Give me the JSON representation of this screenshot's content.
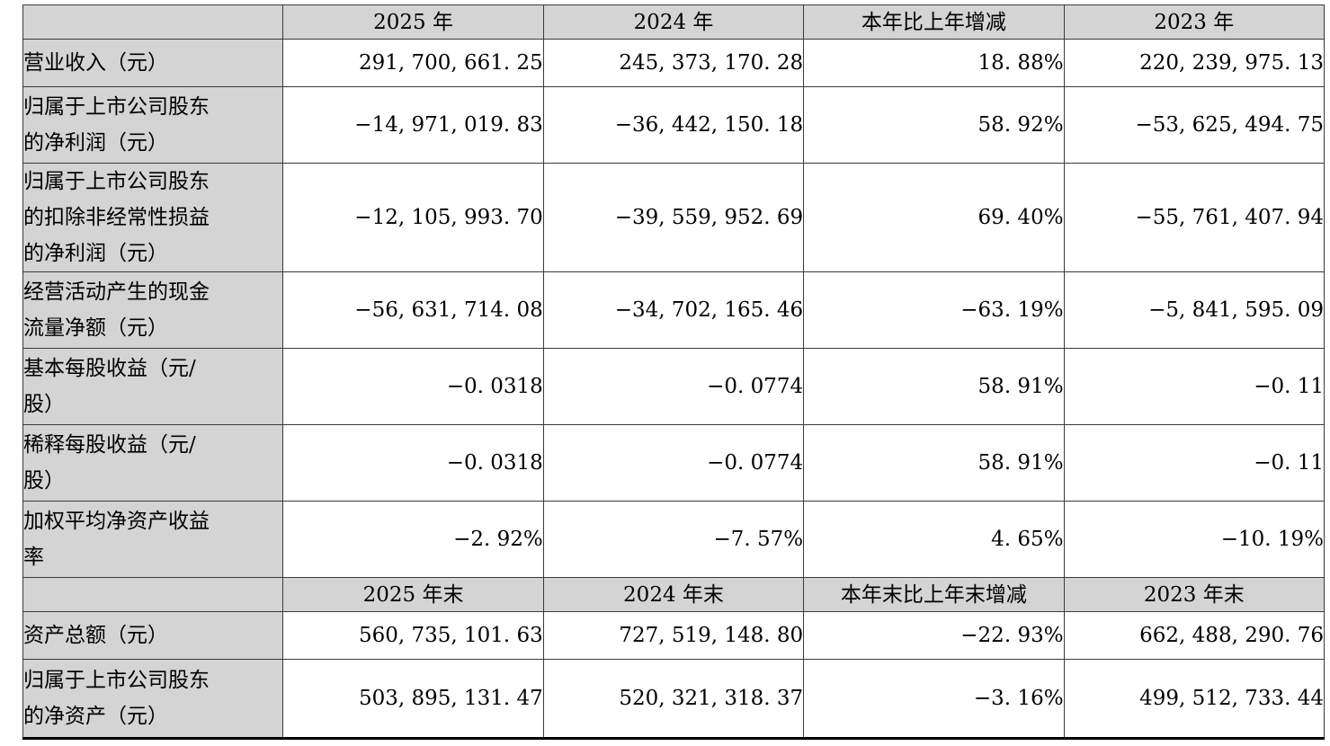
{
  "table_colors": {
    "header_and_label_fill": "#d4d4d4",
    "grid_line": "#3a3a3a",
    "bottom_border": "#000000",
    "data_cell_fill": "#ffffff",
    "text": "#000000"
  },
  "section1": {
    "header": [
      "",
      "2025 年",
      "2024 年",
      "本年比上年增减",
      "2023 年"
    ],
    "rows": [
      {
        "label": "营业收入（元）",
        "values": [
          "291, 700, 661. 25",
          "245, 373, 170. 28",
          "18. 88%",
          "220, 239, 975. 13"
        ]
      },
      {
        "label": "归属于上市公司股东\n的净利润（元）",
        "values": [
          "−14, 971, 019. 83",
          "−36, 442, 150. 18",
          "58. 92%",
          "−53, 625, 494. 75"
        ]
      },
      {
        "label": "归属于上市公司股东\n的扣除非经常性损益\n的净利润（元）",
        "values": [
          "−12, 105, 993. 70",
          "−39, 559, 952. 69",
          "69. 40%",
          "−55, 761, 407. 94"
        ]
      },
      {
        "label": "经营活动产生的现金\n流量净额（元）",
        "values": [
          "−56, 631, 714. 08",
          "−34, 702, 165. 46",
          "−63. 19%",
          "−5, 841, 595. 09"
        ]
      },
      {
        "label": "基本每股收益（元/\n股）",
        "values": [
          "−0. 0318",
          "−0. 0774",
          "58. 91%",
          "−0. 11"
        ]
      },
      {
        "label": "稀释每股收益（元/\n股）",
        "values": [
          "−0. 0318",
          "−0. 0774",
          "58. 91%",
          "−0. 11"
        ]
      },
      {
        "label": "加权平均净资产收益\n率",
        "values": [
          "−2. 92%",
          "−7. 57%",
          "4. 65%",
          "−10. 19%"
        ]
      }
    ]
  },
  "section2": {
    "header": [
      "",
      "2025 年末",
      "2024 年末",
      "本年末比上年末增减",
      "2023 年末"
    ],
    "rows": [
      {
        "label": "资产总额（元）",
        "values": [
          "560, 735, 101. 63",
          "727, 519, 148. 80",
          "−22. 93%",
          "662, 488, 290. 76"
        ]
      },
      {
        "label": "归属于上市公司股东\n的净资产（元）",
        "values": [
          "503, 895, 131. 47",
          "520, 321, 318. 37",
          "−3. 16%",
          "499, 512, 733. 44"
        ]
      }
    ]
  }
}
